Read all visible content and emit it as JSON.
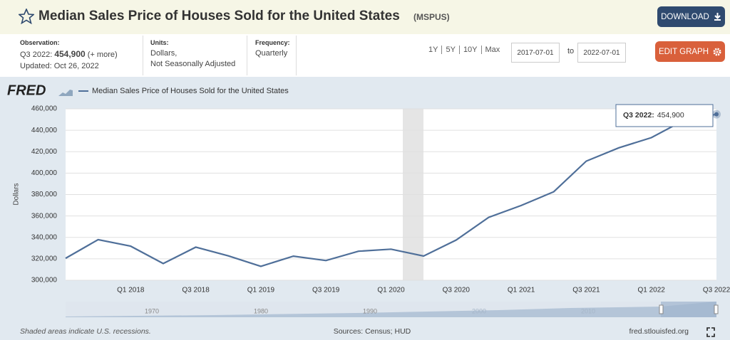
{
  "header": {
    "title": "Median Sales Price of Houses Sold for the United States",
    "series_id": "(MSPUS)",
    "download": "DOWNLOAD",
    "edit_graph": "EDIT GRAPH"
  },
  "info": {
    "observation_label": "Observation:",
    "observation_period": "Q3 2022:",
    "observation_value": "454,900",
    "more": "(+ more)",
    "updated": "Updated: Oct 26, 2022",
    "units_label": "Units:",
    "units": [
      "Dollars,",
      "Not Seasonally Adjusted"
    ],
    "frequency_label": "Frequency:",
    "frequency": "Quarterly"
  },
  "range": {
    "buttons": [
      "1Y",
      "5Y",
      "10Y",
      "Max"
    ],
    "start": "2017-07-01",
    "to": "to",
    "end": "2022-07-01"
  },
  "chart_data": {
    "type": "line",
    "y_label": "Dollars",
    "categories": [
      null,
      null,
      "Q1 2018",
      null,
      "Q3 2018",
      null,
      "Q1 2019",
      null,
      "Q3 2019",
      null,
      "Q1 2020",
      null,
      "Q3 2020",
      null,
      "Q1 2021",
      null,
      "Q3 2021",
      null,
      "Q1 2022",
      null,
      "Q3 2022"
    ],
    "series": [
      {
        "name": "Median Sales Price of Houses Sold for the United States",
        "color": "#4f6f99",
        "values": [
          320500,
          337900,
          331800,
          315600,
          330900,
          322800,
          313000,
          322500,
          318400,
          327100,
          329000,
          322600,
          337500,
          358700,
          369800,
          382600,
          411200,
          423600,
          433100,
          449300,
          454900
        ]
      }
    ],
    "ylim": [
      300000,
      460000
    ],
    "yticks": [
      {
        "value": 300000,
        "label": "300,000"
      },
      {
        "value": 320000,
        "label": "320,000"
      },
      {
        "value": 340000,
        "label": "340,000"
      },
      {
        "value": 360000,
        "label": "360,000"
      },
      {
        "value": 380000,
        "label": "380,000"
      },
      {
        "value": 400000,
        "label": "400,000"
      },
      {
        "value": 420000,
        "label": "420,000"
      },
      {
        "value": 440000,
        "label": "440,000"
      },
      {
        "value": 460000,
        "label": "460,000"
      }
    ],
    "grid": true
  },
  "chart_ui": {
    "logo": "FRED",
    "tooltip_label": "Q3 2022:",
    "tooltip_value": "454,900",
    "navigator_years": [
      "1970",
      "1980",
      "1990",
      "2000",
      "2010"
    ]
  },
  "footer": {
    "note": "Shaded areas indicate U.S. recessions.",
    "sources": "Sources: Census; HUD",
    "site": "fred.stlouisfed.org"
  }
}
